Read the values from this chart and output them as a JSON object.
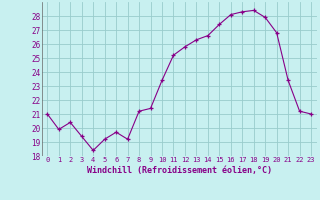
{
  "x": [
    0,
    1,
    2,
    3,
    4,
    5,
    6,
    7,
    8,
    9,
    10,
    11,
    12,
    13,
    14,
    15,
    16,
    17,
    18,
    19,
    20,
    21,
    22,
    23
  ],
  "y": [
    21.0,
    19.9,
    20.4,
    19.4,
    18.4,
    19.2,
    19.7,
    19.2,
    21.2,
    21.4,
    23.4,
    25.2,
    25.8,
    26.3,
    26.6,
    27.4,
    28.1,
    28.3,
    28.4,
    27.9,
    26.8,
    23.4,
    21.2,
    21.0
  ],
  "line_color": "#880088",
  "marker": "+",
  "marker_color": "#880088",
  "bg_color": "#c8f0f0",
  "grid_color": "#99cccc",
  "xlabel": "Windchill (Refroidissement éolien,°C)",
  "xlabel_color": "#880088",
  "tick_color": "#880088",
  "ylim": [
    18,
    29
  ],
  "yticks": [
    18,
    19,
    20,
    21,
    22,
    23,
    24,
    25,
    26,
    27,
    28
  ],
  "xticks": [
    0,
    1,
    2,
    3,
    4,
    5,
    6,
    7,
    8,
    9,
    10,
    11,
    12,
    13,
    14,
    15,
    16,
    17,
    18,
    19,
    20,
    21,
    22,
    23
  ]
}
